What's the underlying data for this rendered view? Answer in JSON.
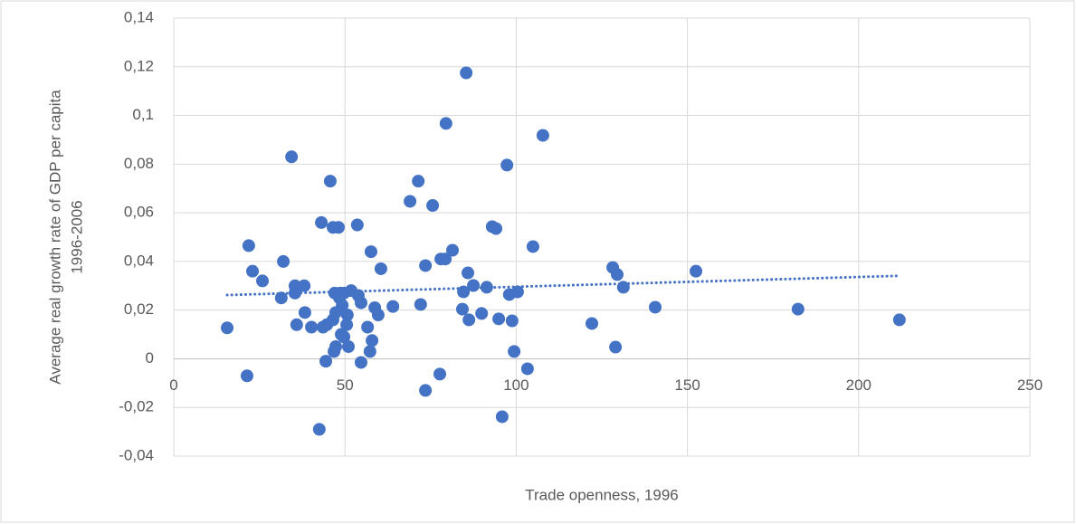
{
  "chart_data": {
    "type": "scatter",
    "x_label": "Trade openness, 1996",
    "y_label": [
      "Average real growth rate of GDP per capita",
      "1996-2006"
    ],
    "color": "#4472c4",
    "grid": true,
    "xlim": [
      0,
      250
    ],
    "xticks": [
      0,
      50,
      100,
      150,
      200,
      250
    ],
    "ylim": [
      -0.04,
      0.14
    ],
    "yticks": [
      {
        "value": -0.04,
        "label": "-0,04"
      },
      {
        "value": -0.02,
        "label": "-0,02"
      },
      0,
      {
        "value": 0.02,
        "label": "0,02"
      },
      {
        "value": 0.04,
        "label": "0,04"
      },
      {
        "value": 0.06,
        "label": "0,06"
      },
      {
        "value": 0.08,
        "label": "0,08"
      },
      {
        "value": 0.1,
        "label": "0,1"
      },
      {
        "value": 0.12,
        "label": "0,12"
      },
      {
        "value": 0.14,
        "label": "0,14"
      }
    ],
    "x": [
      15.6,
      21.9,
      21.4,
      23.0,
      25.9,
      32.0,
      31.4,
      34.4,
      35.4,
      35.4,
      35.9,
      38.1,
      38.3,
      40.2,
      43.1,
      42.5,
      43.6,
      44.4,
      44.7,
      45.7,
      46.5,
      48.1,
      47.0,
      47.3,
      46.8,
      47.3,
      46.5,
      48.4,
      48.6,
      48.9,
      49.2,
      49.7,
      49.7,
      50.5,
      50.7,
      51.0,
      51.8,
      53.6,
      53.9,
      54.7,
      54.7,
      56.6,
      57.6,
      57.3,
      57.9,
      58.7,
      59.7,
      60.5,
      64.0,
      69.0,
      71.4,
      72.1,
      73.5,
      73.5,
      75.6,
      77.7,
      78.0,
      79.3,
      79.5,
      81.4,
      84.3,
      84.6,
      85.4,
      85.9,
      86.2,
      87.5,
      89.9,
      91.4,
      93.0,
      94.1,
      94.9,
      95.9,
      97.3,
      98.0,
      98.8,
      99.4,
      100.4,
      103.3,
      104.9,
      107.8,
      122.1,
      128.2,
      129.0,
      129.5,
      131.3,
      140.6,
      152.5,
      182.3,
      211.9
    ],
    "values": [
      0.0127,
      0.0465,
      -0.007,
      0.036,
      0.032,
      0.04,
      0.025,
      0.083,
      0.03,
      0.027,
      0.014,
      0.03,
      0.019,
      0.013,
      0.056,
      -0.029,
      0.013,
      -0.001,
      0.014,
      0.073,
      0.054,
      0.054,
      0.027,
      0.019,
      0.003,
      0.005,
      0.016,
      0.025,
      0.027,
      0.01,
      0.022,
      0.027,
      0.009,
      0.014,
      0.018,
      0.005,
      0.028,
      0.055,
      0.026,
      0.023,
      -0.0015,
      0.013,
      0.044,
      0.003,
      0.0075,
      0.021,
      0.018,
      0.037,
      0.0215,
      0.0647,
      0.073,
      0.0223,
      0.0383,
      -0.013,
      0.063,
      -0.0063,
      0.041,
      0.041,
      0.0967,
      0.0446,
      0.0204,
      0.0275,
      0.1175,
      0.0353,
      0.016,
      0.0301,
      0.0186,
      0.0294,
      0.0543,
      0.0535,
      0.0164,
      -0.0238,
      0.0796,
      0.0264,
      0.0156,
      0.003,
      0.0275,
      -0.0041,
      0.0461,
      0.0918,
      0.0145,
      0.0375,
      0.0048,
      0.0346,
      0.0294,
      0.0212,
      0.036,
      0.0204,
      0.016
    ],
    "trendline": {
      "x": [
        15.6,
        211.9
      ],
      "values": [
        0.0262,
        0.0341
      ],
      "color": "#4472c4"
    }
  }
}
